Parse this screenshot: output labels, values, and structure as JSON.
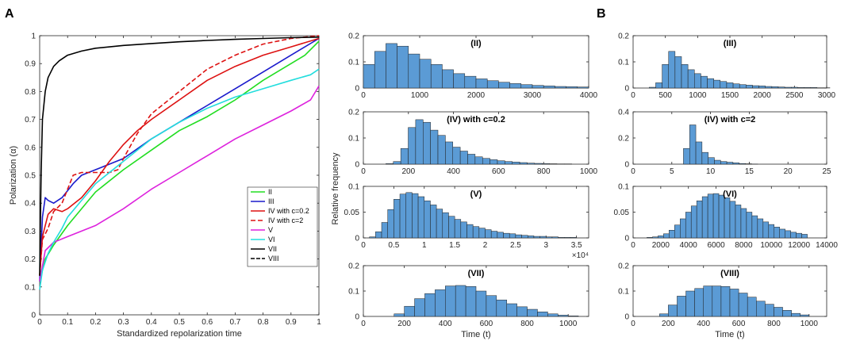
{
  "panel_labels": {
    "a": "A",
    "b": "B"
  },
  "colors": {
    "bar": "#5b9bd5",
    "bar_edge": "#1f1f1f",
    "axis": "#262626"
  },
  "chart_data": [
    {
      "id": "lines",
      "type": "line",
      "xlabel": "Standardized repolarization time",
      "ylabel": "Polarization (α)",
      "xlim": [
        0,
        1
      ],
      "ylim": [
        0,
        1
      ],
      "xticks": [
        0,
        0.1,
        0.2,
        0.3,
        0.4,
        0.5,
        0.6,
        0.7,
        0.8,
        0.9,
        1
      ],
      "yticks": [
        0,
        0.1,
        0.2,
        0.3,
        0.4,
        0.5,
        0.6,
        0.7,
        0.8,
        0.9,
        1
      ],
      "legend_position": "center-right",
      "series": [
        {
          "name": "II",
          "color": "#22dd22",
          "dash": "",
          "x": [
            0,
            0.02,
            0.05,
            0.1,
            0.15,
            0.2,
            0.3,
            0.4,
            0.5,
            0.6,
            0.7,
            0.8,
            0.9,
            0.95,
            1
          ],
          "y": [
            0.12,
            0.2,
            0.25,
            0.32,
            0.38,
            0.44,
            0.52,
            0.59,
            0.66,
            0.71,
            0.77,
            0.84,
            0.9,
            0.93,
            0.98
          ]
        },
        {
          "name": "III",
          "color": "#1a1acc",
          "dash": "",
          "x": [
            0,
            0.01,
            0.02,
            0.03,
            0.05,
            0.08,
            0.12,
            0.15,
            0.2,
            0.3,
            0.4,
            0.5,
            0.6,
            0.7,
            0.8,
            0.9,
            1
          ],
          "y": [
            0.12,
            0.35,
            0.42,
            0.41,
            0.4,
            0.42,
            0.47,
            0.5,
            0.52,
            0.56,
            0.63,
            0.69,
            0.75,
            0.81,
            0.87,
            0.93,
            0.99
          ]
        },
        {
          "name": "IV with c=0.2",
          "color": "#dd1111",
          "dash": "",
          "x": [
            0,
            0.01,
            0.03,
            0.05,
            0.08,
            0.1,
            0.15,
            0.2,
            0.25,
            0.3,
            0.35,
            0.4,
            0.5,
            0.6,
            0.7,
            0.8,
            0.9,
            1
          ],
          "y": [
            0.14,
            0.28,
            0.36,
            0.38,
            0.37,
            0.38,
            0.42,
            0.48,
            0.55,
            0.61,
            0.66,
            0.7,
            0.77,
            0.84,
            0.89,
            0.93,
            0.96,
            0.99
          ]
        },
        {
          "name": "IV with c=2",
          "color": "#dd1111",
          "dash": "6,3",
          "x": [
            0,
            0.01,
            0.03,
            0.05,
            0.08,
            0.1,
            0.12,
            0.15,
            0.2,
            0.25,
            0.28,
            0.3,
            0.35,
            0.4,
            0.5,
            0.6,
            0.7,
            0.8,
            0.9,
            1
          ],
          "y": [
            0.14,
            0.27,
            0.31,
            0.37,
            0.4,
            0.45,
            0.5,
            0.51,
            0.51,
            0.51,
            0.52,
            0.56,
            0.65,
            0.72,
            0.8,
            0.88,
            0.93,
            0.97,
            0.99,
            1.0
          ]
        },
        {
          "name": "V",
          "color": "#dd22dd",
          "dash": "",
          "x": [
            0,
            0.02,
            0.05,
            0.1,
            0.15,
            0.2,
            0.3,
            0.4,
            0.5,
            0.6,
            0.7,
            0.8,
            0.9,
            0.97,
            1
          ],
          "y": [
            0.12,
            0.23,
            0.26,
            0.28,
            0.3,
            0.32,
            0.38,
            0.45,
            0.51,
            0.57,
            0.63,
            0.68,
            0.73,
            0.77,
            0.82
          ]
        },
        {
          "name": "VI",
          "color": "#22dddd",
          "dash": "",
          "x": [
            0,
            0.01,
            0.03,
            0.05,
            0.08,
            0.1,
            0.15,
            0.2,
            0.3,
            0.4,
            0.5,
            0.6,
            0.7,
            0.8,
            0.9,
            0.97,
            1
          ],
          "y": [
            0.09,
            0.16,
            0.22,
            0.26,
            0.31,
            0.35,
            0.41,
            0.47,
            0.55,
            0.63,
            0.69,
            0.74,
            0.78,
            0.81,
            0.84,
            0.86,
            0.88
          ]
        },
        {
          "name": "VII",
          "color": "#000000",
          "dash": "",
          "x": [
            0,
            0.005,
            0.01,
            0.02,
            0.03,
            0.05,
            0.07,
            0.1,
            0.15,
            0.2,
            0.3,
            0.4,
            0.5,
            0.6,
            0.7,
            0.8,
            0.9,
            1
          ],
          "y": [
            0.14,
            0.5,
            0.7,
            0.8,
            0.85,
            0.89,
            0.91,
            0.93,
            0.945,
            0.955,
            0.965,
            0.972,
            0.978,
            0.983,
            0.987,
            0.99,
            0.993,
            0.995
          ]
        },
        {
          "name": "VIII",
          "color": "#000000",
          "dash": "5,2",
          "x": [],
          "y": []
        }
      ]
    },
    {
      "id": "h2",
      "type": "bar",
      "title": "(II)",
      "xlabel": "",
      "ylabel": "",
      "xlim": [
        0,
        4000
      ],
      "ylim": [
        0,
        0.2
      ],
      "xticks": [
        0,
        1000,
        2000,
        3000,
        4000
      ],
      "yticks": [
        0,
        0.1,
        0.2
      ],
      "ytick_labels": [
        "0",
        "0.1",
        "0.2"
      ],
      "bin_start": 0,
      "bin_width": 200,
      "values": [
        0.09,
        0.14,
        0.17,
        0.16,
        0.13,
        0.11,
        0.09,
        0.07,
        0.055,
        0.045,
        0.035,
        0.028,
        0.022,
        0.017,
        0.013,
        0.01,
        0.008,
        0.006,
        0.005,
        0.004
      ]
    },
    {
      "id": "h3",
      "type": "bar",
      "title": "(III)",
      "xlabel": "",
      "ylabel": "",
      "xlim": [
        0,
        3000
      ],
      "ylim": [
        0,
        0.2
      ],
      "xticks": [
        0,
        500,
        1000,
        1500,
        2000,
        2500,
        3000
      ],
      "yticks": [
        0,
        0.1,
        0.2
      ],
      "ytick_labels": [
        "0",
        "0.1",
        "0.2"
      ],
      "bin_start": 250,
      "bin_width": 100,
      "values": [
        0.003,
        0.02,
        0.09,
        0.14,
        0.12,
        0.09,
        0.07,
        0.055,
        0.045,
        0.036,
        0.03,
        0.025,
        0.02,
        0.016,
        0.013,
        0.011,
        0.009,
        0.008,
        0.006,
        0.005,
        0.004,
        0.003,
        0.003,
        0.002,
        0.002,
        0.002,
        0.001,
        0.001
      ]
    },
    {
      "id": "h4a",
      "type": "bar",
      "title": "(IV) with c=0.2",
      "xlabel": "",
      "ylabel": "",
      "xlim": [
        0,
        1000
      ],
      "ylim": [
        0,
        0.2
      ],
      "xticks": [
        0,
        200,
        400,
        600,
        800,
        1000
      ],
      "yticks": [
        0,
        0.1,
        0.2
      ],
      "ytick_labels": [
        "0",
        "0.1",
        "0.2"
      ],
      "bin_start": 100,
      "bin_width": 33,
      "values": [
        0.002,
        0.01,
        0.06,
        0.14,
        0.17,
        0.16,
        0.13,
        0.11,
        0.085,
        0.065,
        0.05,
        0.038,
        0.028,
        0.022,
        0.017,
        0.013,
        0.01,
        0.008,
        0.006,
        0.004,
        0.003,
        0.002,
        0.0015,
        0.001,
        0.001
      ]
    },
    {
      "id": "h4b",
      "type": "bar",
      "title": "(IV) with c=2",
      "xlabel": "",
      "ylabel": "",
      "xlim": [
        0,
        25
      ],
      "ylim": [
        0,
        0.4
      ],
      "xticks": [
        0,
        5,
        10,
        15,
        20,
        25
      ],
      "yticks": [
        0,
        0.2,
        0.4
      ],
      "ytick_labels": [
        "0",
        "0.2",
        "0.4"
      ],
      "bin_start": 6.5,
      "bin_width": 0.8,
      "values": [
        0.12,
        0.3,
        0.17,
        0.09,
        0.05,
        0.03,
        0.02,
        0.015,
        0.01,
        0.005,
        0.003,
        0.001
      ]
    },
    {
      "id": "h5",
      "type": "bar",
      "title": "(V)",
      "xlabel": "",
      "ylabel": "",
      "xlim": [
        0,
        37000
      ],
      "ylim": [
        0,
        0.1
      ],
      "xticks": [
        0,
        5000,
        10000,
        15000,
        20000,
        25000,
        30000,
        35000
      ],
      "xtick_labels": [
        "0",
        "0.5",
        "1",
        "1.5",
        "2",
        "2.5",
        "3",
        "3.5"
      ],
      "exponent": "×10⁴",
      "yticks": [
        0,
        0.05,
        0.1
      ],
      "ytick_labels": [
        "0",
        "0.05",
        "0.1"
      ],
      "bin_start": 1000,
      "bin_width": 1000,
      "values": [
        0.002,
        0.012,
        0.03,
        0.055,
        0.075,
        0.085,
        0.088,
        0.086,
        0.08,
        0.072,
        0.064,
        0.056,
        0.049,
        0.042,
        0.036,
        0.031,
        0.026,
        0.022,
        0.019,
        0.016,
        0.013,
        0.011,
        0.009,
        0.008,
        0.006,
        0.005,
        0.004,
        0.003,
        0.003,
        0.002,
        0.002,
        0.001,
        0.001,
        0.001
      ]
    },
    {
      "id": "h6",
      "type": "bar",
      "title": "(VI)",
      "xlabel": "",
      "ylabel": "",
      "xlim": [
        0,
        14000
      ],
      "ylim": [
        0,
        0.1
      ],
      "xticks": [
        0,
        2000,
        4000,
        6000,
        8000,
        10000,
        12000,
        14000
      ],
      "yticks": [
        0,
        0.05,
        0.1
      ],
      "ytick_labels": [
        "0",
        "0.05",
        "0.1"
      ],
      "bin_start": 1000,
      "bin_width": 400,
      "values": [
        0.001,
        0.002,
        0.004,
        0.008,
        0.015,
        0.025,
        0.037,
        0.05,
        0.062,
        0.072,
        0.08,
        0.085,
        0.086,
        0.083,
        0.078,
        0.071,
        0.064,
        0.057,
        0.05,
        0.043,
        0.037,
        0.031,
        0.026,
        0.021,
        0.017,
        0.014,
        0.011,
        0.009,
        0.007
      ]
    },
    {
      "id": "h7",
      "type": "bar",
      "title": "(VII)",
      "xlabel": "Time (t)",
      "ylabel": "",
      "xlim": [
        0,
        1100
      ],
      "ylim": [
        0,
        0.2
      ],
      "xticks": [
        0,
        200,
        400,
        600,
        800,
        1000
      ],
      "yticks": [
        0,
        0.1,
        0.2
      ],
      "ytick_labels": [
        "0",
        "0.1",
        "0.2"
      ],
      "bin_start": 150,
      "bin_width": 50,
      "values": [
        0.01,
        0.04,
        0.07,
        0.09,
        0.105,
        0.12,
        0.122,
        0.118,
        0.1,
        0.082,
        0.065,
        0.05,
        0.038,
        0.028,
        0.018,
        0.01,
        0.005,
        0.002
      ]
    },
    {
      "id": "h8",
      "type": "bar",
      "title": "(VIII)",
      "xlabel": "Time (t)",
      "ylabel": "",
      "xlim": [
        0,
        1100
      ],
      "ylim": [
        0,
        0.2
      ],
      "xticks": [
        0,
        200,
        400,
        600,
        800,
        1000
      ],
      "yticks": [
        0,
        0.1,
        0.2
      ],
      "ytick_labels": [
        "0",
        "0.1",
        "0.2"
      ],
      "bin_start": 150,
      "bin_width": 50,
      "values": [
        0.01,
        0.045,
        0.08,
        0.1,
        0.11,
        0.12,
        0.12,
        0.118,
        0.108,
        0.092,
        0.076,
        0.06,
        0.048,
        0.036,
        0.024,
        0.012,
        0.006
      ]
    }
  ],
  "shared_ylabel": "Relative frequency"
}
